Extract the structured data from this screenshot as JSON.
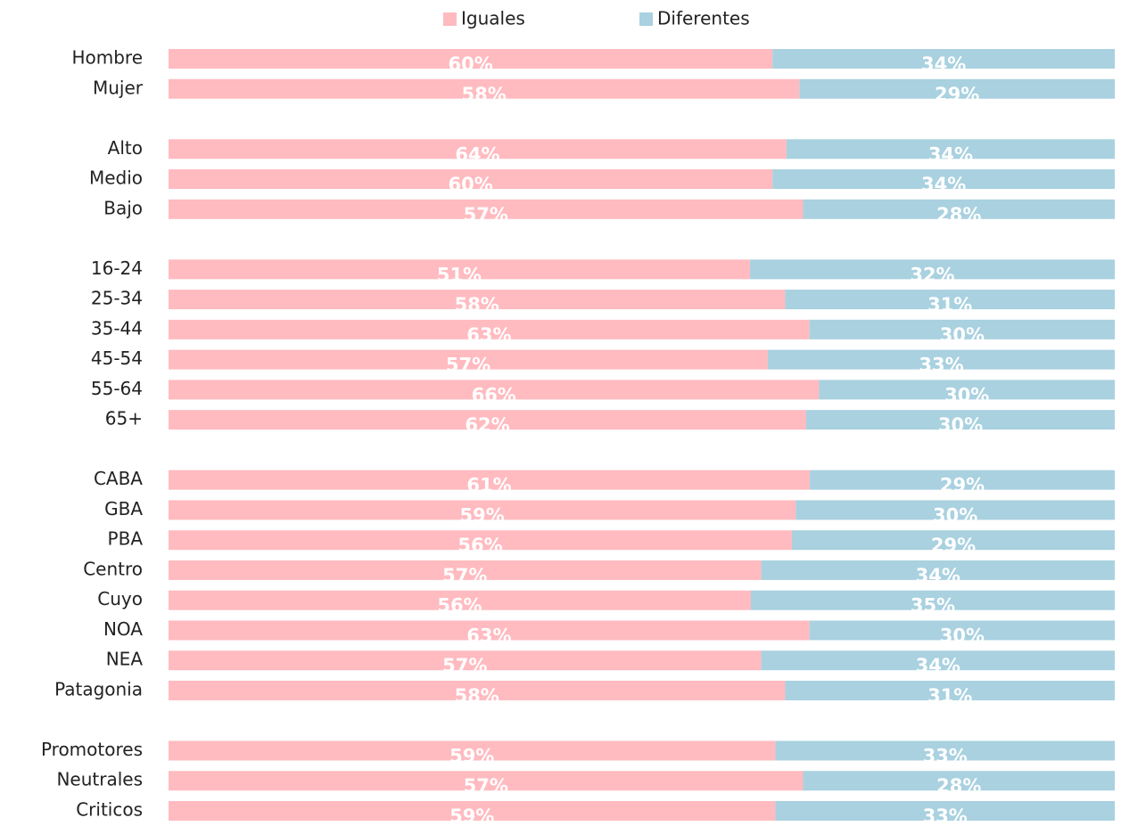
{
  "chart_data": {
    "type": "bar",
    "orientation": "horizontal",
    "stacked": "percent",
    "legend": "top",
    "categories": [
      "Hombre",
      "Mujer",
      null,
      "Alto",
      "Medio",
      "Bajo",
      null,
      "16-24",
      "25-34",
      "35-44",
      "45-54",
      "55-64",
      "65+",
      null,
      "CABA",
      "GBA",
      "PBA",
      "Centro",
      "Cuyo",
      "NOA",
      "NEA",
      "Patagonia",
      null,
      "Promotores",
      "Neutrales",
      "Criticos"
    ],
    "series": [
      {
        "name": "Iguales",
        "color": "#ffbbc0",
        "values": [
          60,
          58,
          null,
          64,
          60,
          57,
          null,
          51,
          58,
          63,
          57,
          66,
          62,
          null,
          61,
          59,
          56,
          57,
          56,
          63,
          57,
          58,
          null,
          59,
          57,
          59
        ],
        "value_labels": [
          "60%",
          "58%",
          null,
          "64%",
          "60%",
          "57%",
          null,
          "51%",
          "58%",
          "63%",
          "57%",
          "66%",
          "62%",
          null,
          "61%",
          "59%",
          "56%",
          "57%",
          "56%",
          "63%",
          "57%",
          "58%",
          null,
          "59%",
          "57%",
          "59%"
        ]
      },
      {
        "name": "Diferentes",
        "color": "#a9d1e0",
        "values": [
          34,
          29,
          null,
          34,
          34,
          28,
          null,
          32,
          31,
          30,
          33,
          30,
          30,
          null,
          29,
          30,
          29,
          34,
          35,
          30,
          34,
          31,
          null,
          33,
          28,
          33
        ],
        "value_labels": [
          "34%",
          "29%",
          null,
          "34%",
          "34%",
          "28%",
          null,
          "32%",
          "31%",
          "30%",
          "33%",
          "30%",
          "30%",
          null,
          "29%",
          "30%",
          "29%",
          "34%",
          "35%",
          "30%",
          "34%",
          "31%",
          null,
          "33%",
          "28%",
          "33%"
        ]
      }
    ]
  }
}
